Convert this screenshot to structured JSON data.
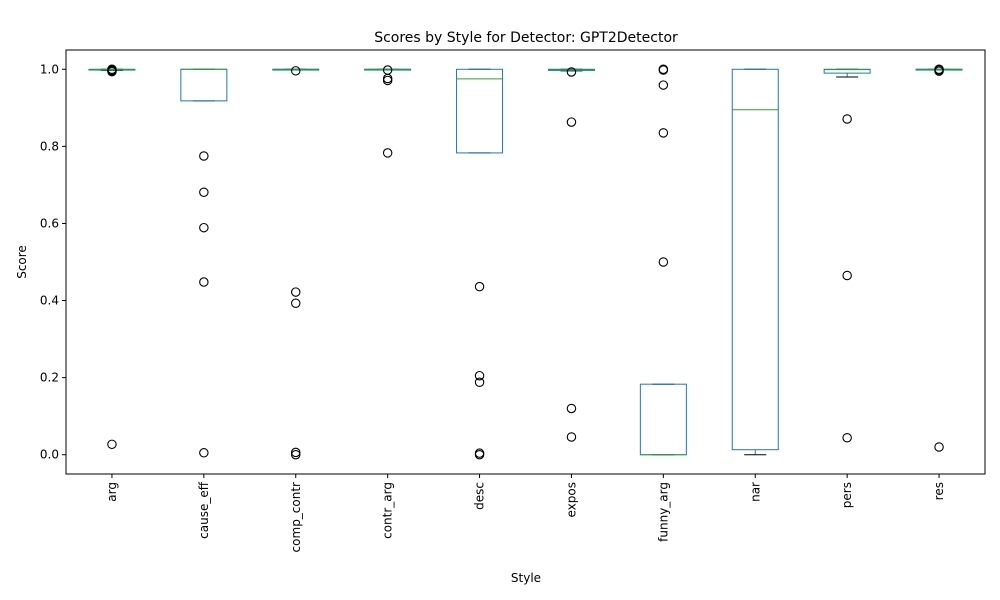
{
  "chart_data": {
    "type": "box",
    "title": "Scores by Style for Detector: GPT2Detector",
    "xlabel": "Style",
    "ylabel": "Score",
    "ylim": [
      -0.05,
      1.05
    ],
    "yticks": [
      "0.0",
      "0.2",
      "0.4",
      "0.6",
      "0.8",
      "1.0"
    ],
    "categories": [
      "arg",
      "cause_eff",
      "comp_contr",
      "contr_arg",
      "desc",
      "expos",
      "funny_arg",
      "nar",
      "pers",
      "res"
    ],
    "grid": false,
    "colors": {
      "box": "#1f77b4",
      "median": "#2ca02c",
      "whisker": "#000000",
      "flier": "#000000"
    },
    "boxes": [
      {
        "category": "arg",
        "whisker_low": 0.997,
        "q1": 0.998,
        "median": 0.999,
        "q3": 1.0,
        "whisker_high": 1.0,
        "outliers": [
          0.027,
          0.994,
          0.996,
          0.998,
          1.0
        ]
      },
      {
        "category": "cause_eff",
        "whisker_low": 0.918,
        "q1": 0.918,
        "median": 1.0,
        "q3": 1.0,
        "whisker_high": 1.0,
        "outliers": [
          0.775,
          0.681,
          0.589,
          0.448,
          0.005
        ]
      },
      {
        "category": "comp_contr",
        "whisker_low": 0.998,
        "q1": 0.999,
        "median": 1.0,
        "q3": 1.0,
        "whisker_high": 1.0,
        "outliers": [
          0.996,
          0.422,
          0.393,
          0.006,
          0.0
        ]
      },
      {
        "category": "contr_arg",
        "whisker_low": 0.998,
        "q1": 0.999,
        "median": 1.0,
        "q3": 1.0,
        "whisker_high": 1.0,
        "outliers": [
          0.998,
          0.976,
          0.971,
          0.783
        ]
      },
      {
        "category": "desc",
        "whisker_low": 0.783,
        "q1": 0.783,
        "median": 0.975,
        "q3": 1.0,
        "whisker_high": 1.0,
        "outliers": [
          0.436,
          0.205,
          0.188,
          0.004,
          0.0
        ]
      },
      {
        "category": "expos",
        "whisker_low": 0.996,
        "q1": 0.997,
        "median": 0.998,
        "q3": 1.0,
        "whisker_high": 1.0,
        "outliers": [
          0.993,
          0.863,
          0.12,
          0.046
        ]
      },
      {
        "category": "funny_arg",
        "whisker_low": 0.0,
        "q1": 0.0,
        "median": 0.0,
        "q3": 0.183,
        "whisker_high": 0.183,
        "outliers": [
          0.5,
          0.835,
          0.959,
          0.998,
          1.0
        ]
      },
      {
        "category": "nar",
        "whisker_low": 0.0,
        "q1": 0.013,
        "median": 0.895,
        "q3": 1.0,
        "whisker_high": 1.0,
        "outliers": []
      },
      {
        "category": "pers",
        "whisker_low": 0.98,
        "q1": 0.99,
        "median": 0.999,
        "q3": 1.0,
        "whisker_high": 1.0,
        "outliers": [
          0.871,
          0.465,
          0.044
        ]
      },
      {
        "category": "res",
        "whisker_low": 0.998,
        "q1": 0.999,
        "median": 1.0,
        "q3": 1.0,
        "whisker_high": 1.0,
        "outliers": [
          0.02,
          0.995,
          0.998,
          1.0
        ]
      }
    ]
  }
}
